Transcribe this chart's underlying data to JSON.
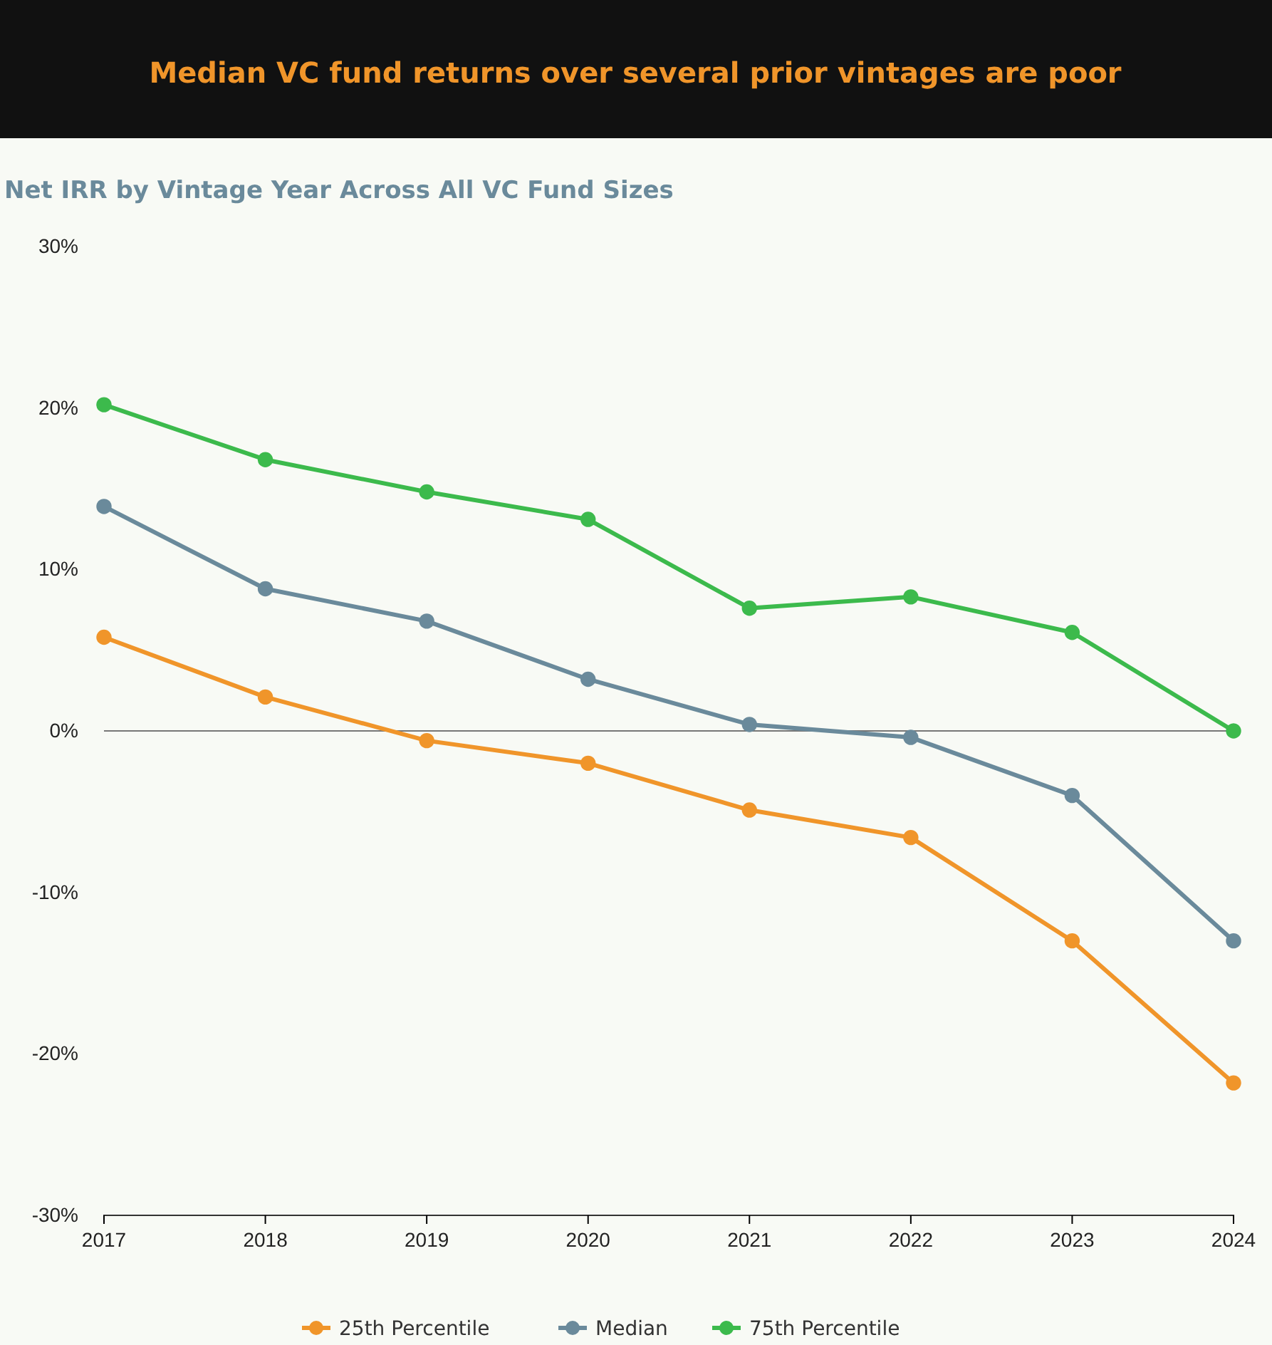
{
  "chart_data": {
    "type": "line",
    "title": "Median VC fund returns over several prior vintages are poor",
    "subtitle": "Net IRR by Vintage Year Across All VC Fund Sizes",
    "categories": [
      "2017",
      "2018",
      "2019",
      "2020",
      "2021",
      "2022",
      "2023",
      "2024"
    ],
    "series": [
      {
        "name": "25th Percentile",
        "color": "#f0952a",
        "values": [
          5.8,
          2.1,
          -0.6,
          -2.0,
          -4.9,
          -6.6,
          -13.0,
          -21.8
        ]
      },
      {
        "name": "Median",
        "color": "#6a8a9b",
        "values": [
          13.9,
          8.8,
          6.8,
          3.2,
          0.4,
          -0.4,
          -4.0,
          -13.0
        ]
      },
      {
        "name": "75th Percentile",
        "color": "#3cba4c",
        "values": [
          20.2,
          16.8,
          14.8,
          13.1,
          7.6,
          8.3,
          6.1,
          0.0
        ]
      }
    ],
    "ylim": [
      -30,
      30
    ],
    "yticks": [
      {
        "value": -30,
        "label": "-30%"
      },
      {
        "value": -20,
        "label": "-20%"
      },
      {
        "value": -10,
        "label": "-10%"
      },
      {
        "value": 0,
        "label": "0%"
      },
      {
        "value": 10,
        "label": "10%"
      },
      {
        "value": 20,
        "label": "20%"
      },
      {
        "value": 30,
        "label": "30%"
      }
    ],
    "ref_lines": [
      {
        "axis": "y",
        "value": 0,
        "label": null,
        "color": "#777777"
      }
    ],
    "grid": false,
    "legend": "bottom",
    "marker": "circle",
    "line_style": "solid"
  }
}
